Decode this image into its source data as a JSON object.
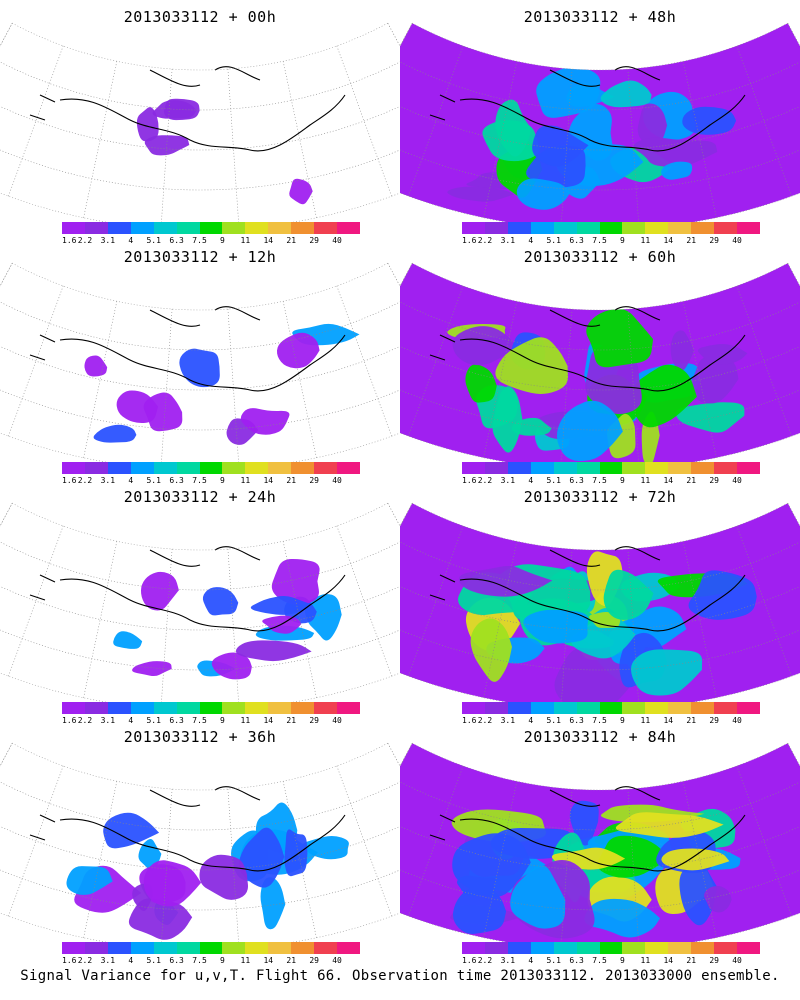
{
  "footer": "Signal Variance for u,v,T. Flight 66. Observation time 2013033112. 2013033000 ensemble.",
  "colorbar": {
    "labels": [
      "1.6",
      "2.2",
      "3.1",
      "4",
      "5.1",
      "6.3",
      "7.5",
      "9",
      "11",
      "14",
      "21",
      "29",
      "40"
    ],
    "colors": [
      "#a020f0",
      "#8a2be2",
      "#2a52ff",
      "#00a0ff",
      "#00c8d0",
      "#00d8a0",
      "#00d800",
      "#a0e020",
      "#e0e020",
      "#f0c040",
      "#f09030",
      "#f04050",
      "#f01880"
    ]
  },
  "panels": [
    {
      "title": "2013033112 + 00h",
      "level": 0
    },
    {
      "title": "2013033112 + 48h",
      "level": 4
    },
    {
      "title": "2013033112 + 12h",
      "level": 1
    },
    {
      "title": "2013033112 + 60h",
      "level": 5
    },
    {
      "title": "2013033112 + 24h",
      "level": 2
    },
    {
      "title": "2013033112 + 72h",
      "level": 6
    },
    {
      "title": "2013033112 + 36h",
      "level": 3
    },
    {
      "title": "2013033112 + 84h",
      "level": 7
    }
  ]
}
